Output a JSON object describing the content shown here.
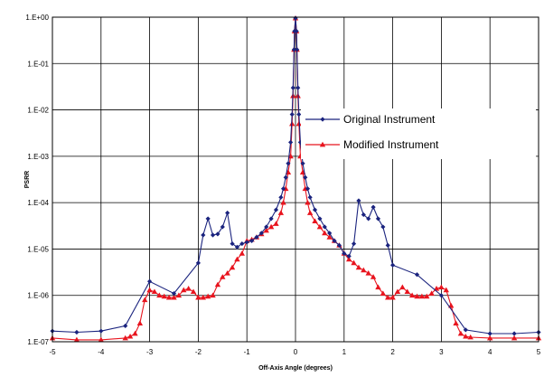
{
  "chart_data": {
    "type": "line",
    "title": "",
    "xlabel": "Off-Axis Angle (degrees)",
    "ylabel": "PSRR",
    "xlim": [
      -5,
      5
    ],
    "ylim": [
      1e-07,
      1
    ],
    "yscale": "log",
    "grid": true,
    "legend_position": "right",
    "x_ticks": [
      "-5",
      "-4",
      "-3",
      "-2",
      "-1",
      "0",
      "1",
      "2",
      "3",
      "4",
      "5"
    ],
    "y_ticks": [
      "1.E-07",
      "1.E-06",
      "1.E-05",
      "1.E-04",
      "1.E-03",
      "1.E-02",
      "1.E-01",
      "1.E+00"
    ],
    "series": [
      {
        "name": "Original Instrument",
        "color": "#1a237e",
        "marker": "diamond",
        "points": [
          [
            -5,
            1.7e-07
          ],
          [
            -4.5,
            1.6e-07
          ],
          [
            -4,
            1.7e-07
          ],
          [
            -3.5,
            2.2e-07
          ],
          [
            -3,
            2e-06
          ],
          [
            -2.5,
            1.1e-06
          ],
          [
            -2,
            5e-06
          ],
          [
            -1.9,
            2e-05
          ],
          [
            -1.8,
            4.5e-05
          ],
          [
            -1.7,
            2e-05
          ],
          [
            -1.6,
            2.1e-05
          ],
          [
            -1.5,
            3e-05
          ],
          [
            -1.4,
            6e-05
          ],
          [
            -1.3,
            1.3e-05
          ],
          [
            -1.2,
            1.1e-05
          ],
          [
            -1.1,
            1.3e-05
          ],
          [
            -1,
            1.4e-05
          ],
          [
            -0.9,
            1.5e-05
          ],
          [
            -0.8,
            1.8e-05
          ],
          [
            -0.7,
            2.2e-05
          ],
          [
            -0.6,
            3e-05
          ],
          [
            -0.5,
            4.5e-05
          ],
          [
            -0.4,
            7e-05
          ],
          [
            -0.3,
            0.00013
          ],
          [
            -0.25,
            0.0002
          ],
          [
            -0.2,
            0.00035
          ],
          [
            -0.15,
            0.0007
          ],
          [
            -0.1,
            0.002
          ],
          [
            -0.07,
            0.008
          ],
          [
            -0.05,
            0.03
          ],
          [
            -0.03,
            0.2
          ],
          [
            -0.02,
            0.5
          ],
          [
            0,
            0.95
          ],
          [
            0.02,
            0.5
          ],
          [
            0.03,
            0.2
          ],
          [
            0.05,
            0.03
          ],
          [
            0.07,
            0.008
          ],
          [
            0.1,
            0.002
          ],
          [
            0.15,
            0.0007
          ],
          [
            0.2,
            0.00035
          ],
          [
            0.25,
            0.0002
          ],
          [
            0.3,
            0.00013
          ],
          [
            0.4,
            7e-05
          ],
          [
            0.5,
            4.5e-05
          ],
          [
            0.6,
            3e-05
          ],
          [
            0.7,
            2.2e-05
          ],
          [
            0.8,
            1.5e-05
          ],
          [
            0.9,
            1.2e-05
          ],
          [
            1,
            8e-06
          ],
          [
            1.1,
            7e-06
          ],
          [
            1.2,
            1.3e-05
          ],
          [
            1.3,
            0.00011
          ],
          [
            1.4,
            5.5e-05
          ],
          [
            1.5,
            4.5e-05
          ],
          [
            1.6,
            8e-05
          ],
          [
            1.7,
            4.5e-05
          ],
          [
            1.8,
            3e-05
          ],
          [
            1.9,
            1.2e-05
          ],
          [
            2,
            4.5e-06
          ],
          [
            2.5,
            2.8e-06
          ],
          [
            3,
            1e-06
          ],
          [
            3.5,
            1.8e-07
          ],
          [
            4,
            1.5e-07
          ],
          [
            4.5,
            1.5e-07
          ],
          [
            5,
            1.6e-07
          ]
        ]
      },
      {
        "name": "Modified Instrument",
        "color": "#e8141e",
        "marker": "triangle",
        "points": [
          [
            -5,
            1.2e-07
          ],
          [
            -4.5,
            1.1e-07
          ],
          [
            -4,
            1.1e-07
          ],
          [
            -3.5,
            1.2e-07
          ],
          [
            -3.4,
            1.3e-07
          ],
          [
            -3.3,
            1.5e-07
          ],
          [
            -3.2,
            2.5e-07
          ],
          [
            -3.1,
            8e-07
          ],
          [
            -3,
            1.3e-06
          ],
          [
            -2.9,
            1.2e-06
          ],
          [
            -2.8,
            1e-06
          ],
          [
            -2.7,
            9.5e-07
          ],
          [
            -2.6,
            9e-07
          ],
          [
            -2.5,
            9e-07
          ],
          [
            -2.4,
            1e-06
          ],
          [
            -2.3,
            1.3e-06
          ],
          [
            -2.2,
            1.4e-06
          ],
          [
            -2.1,
            1.2e-06
          ],
          [
            -2,
            9e-07
          ],
          [
            -1.9,
            9e-07
          ],
          [
            -1.8,
            9.5e-07
          ],
          [
            -1.7,
            1e-06
          ],
          [
            -1.6,
            1.7e-06
          ],
          [
            -1.5,
            2.5e-06
          ],
          [
            -1.4,
            3e-06
          ],
          [
            -1.3,
            4e-06
          ],
          [
            -1.2,
            6e-06
          ],
          [
            -1.1,
            8e-06
          ],
          [
            -1,
            1.5e-05
          ],
          [
            -0.9,
            1.6e-05
          ],
          [
            -0.8,
            1.8e-05
          ],
          [
            -0.7,
            2.1e-05
          ],
          [
            -0.6,
            2.5e-05
          ],
          [
            -0.5,
            3e-05
          ],
          [
            -0.4,
            3.5e-05
          ],
          [
            -0.3,
            6e-05
          ],
          [
            -0.25,
            0.0001
          ],
          [
            -0.2,
            0.0002
          ],
          [
            -0.15,
            0.00045
          ],
          [
            -0.1,
            0.001
          ],
          [
            -0.07,
            0.005
          ],
          [
            -0.05,
            0.02
          ],
          [
            -0.03,
            0.2
          ],
          [
            -0.02,
            0.5
          ],
          [
            0,
            0.95
          ],
          [
            0.02,
            0.5
          ],
          [
            0.03,
            0.2
          ],
          [
            0.05,
            0.02
          ],
          [
            0.07,
            0.005
          ],
          [
            0.1,
            0.001
          ],
          [
            0.15,
            0.00045
          ],
          [
            0.2,
            0.0002
          ],
          [
            0.25,
            0.0001
          ],
          [
            0.3,
            6e-05
          ],
          [
            0.4,
            4e-05
          ],
          [
            0.5,
            3e-05
          ],
          [
            0.6,
            2.2e-05
          ],
          [
            0.7,
            1.8e-05
          ],
          [
            0.8,
            1.5e-05
          ],
          [
            0.9,
            1.2e-05
          ],
          [
            1,
            8e-06
          ],
          [
            1.1,
            6e-06
          ],
          [
            1.2,
            5e-06
          ],
          [
            1.3,
            4e-06
          ],
          [
            1.4,
            3.5e-06
          ],
          [
            1.5,
            3e-06
          ],
          [
            1.6,
            2.5e-06
          ],
          [
            1.7,
            1.5e-06
          ],
          [
            1.8,
            1.1e-06
          ],
          [
            1.9,
            9e-07
          ],
          [
            2,
            9e-07
          ],
          [
            2.1,
            1.2e-06
          ],
          [
            2.2,
            1.5e-06
          ],
          [
            2.3,
            1.2e-06
          ],
          [
            2.4,
            1e-06
          ],
          [
            2.5,
            9.5e-07
          ],
          [
            2.6,
            9.5e-07
          ],
          [
            2.7,
            9.5e-07
          ],
          [
            2.8,
            1.1e-06
          ],
          [
            2.9,
            1.4e-06
          ],
          [
            3,
            1.5e-06
          ],
          [
            3.1,
            1.3e-06
          ],
          [
            3.2,
            6e-07
          ],
          [
            3.3,
            2.5e-07
          ],
          [
            3.4,
            1.5e-07
          ],
          [
            3.5,
            1.3e-07
          ],
          [
            3.6,
            1.25e-07
          ],
          [
            4,
            1.2e-07
          ],
          [
            4.5,
            1.2e-07
          ],
          [
            5,
            1.2e-07
          ]
        ]
      }
    ]
  }
}
